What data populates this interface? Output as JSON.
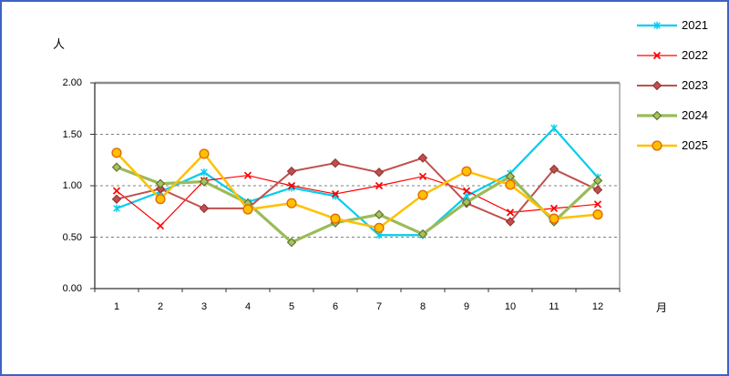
{
  "chart_data": {
    "type": "line",
    "title": "",
    "y_axis_title": "人",
    "x_axis_title": "月",
    "categories": [
      "1",
      "2",
      "3",
      "4",
      "5",
      "6",
      "7",
      "8",
      "9",
      "10",
      "11",
      "12"
    ],
    "y_tick_labels": [
      "0.00",
      "0.50",
      "1.00",
      "1.50",
      "2.00"
    ],
    "y_tick_values": [
      0,
      0.5,
      1.0,
      1.5,
      2.0
    ],
    "ylim": [
      0,
      2.0
    ],
    "grid": "horizontal dashed lines at 0.50 steps",
    "legend_position": "top-right outside plot",
    "frame_color": "#3E62C4",
    "gridline_color": "#808080",
    "series": [
      {
        "name": "2021",
        "color": "#00CDEE",
        "marker": "star",
        "line_width": 2.2,
        "marker_fill": "#00CDEE",
        "marker_stroke": "#00CDEE",
        "values": [
          0.78,
          0.94,
          1.13,
          0.84,
          0.98,
          0.9,
          0.52,
          0.52,
          0.9,
          1.12,
          1.56,
          1.08
        ]
      },
      {
        "name": "2022",
        "color": "#FF0000",
        "marker": "x",
        "line_width": 1.2,
        "marker_fill": "#FF0000",
        "marker_stroke": "#FF0000",
        "values": [
          0.95,
          0.61,
          1.05,
          1.1,
          1.0,
          0.92,
          1.0,
          1.09,
          0.95,
          0.74,
          0.78,
          0.82
        ]
      },
      {
        "name": "2023",
        "color": "#C0504D",
        "marker": "diamond",
        "line_width": 2.0,
        "marker_fill": "#C0504D",
        "marker_stroke": "#943634",
        "values": [
          0.87,
          0.97,
          0.78,
          0.78,
          1.14,
          1.22,
          1.13,
          1.27,
          0.83,
          0.65,
          1.16,
          0.96
        ]
      },
      {
        "name": "2024",
        "color": "#9BBB59",
        "marker": "diamond",
        "line_width": 3.2,
        "marker_fill": "#A9C25D",
        "marker_stroke": "#5F7530",
        "values": [
          1.18,
          1.02,
          1.04,
          0.83,
          0.45,
          0.64,
          0.72,
          0.53,
          0.84,
          1.09,
          0.65,
          1.05
        ]
      },
      {
        "name": "2025",
        "color": "#FFC000",
        "marker": "circle",
        "line_width": 2.5,
        "marker_fill": "#FFC000",
        "marker_stroke": "#E26B0A",
        "values": [
          1.32,
          0.87,
          1.31,
          0.77,
          0.83,
          0.68,
          0.59,
          0.91,
          1.14,
          1.01,
          0.68,
          0.72
        ]
      }
    ]
  }
}
